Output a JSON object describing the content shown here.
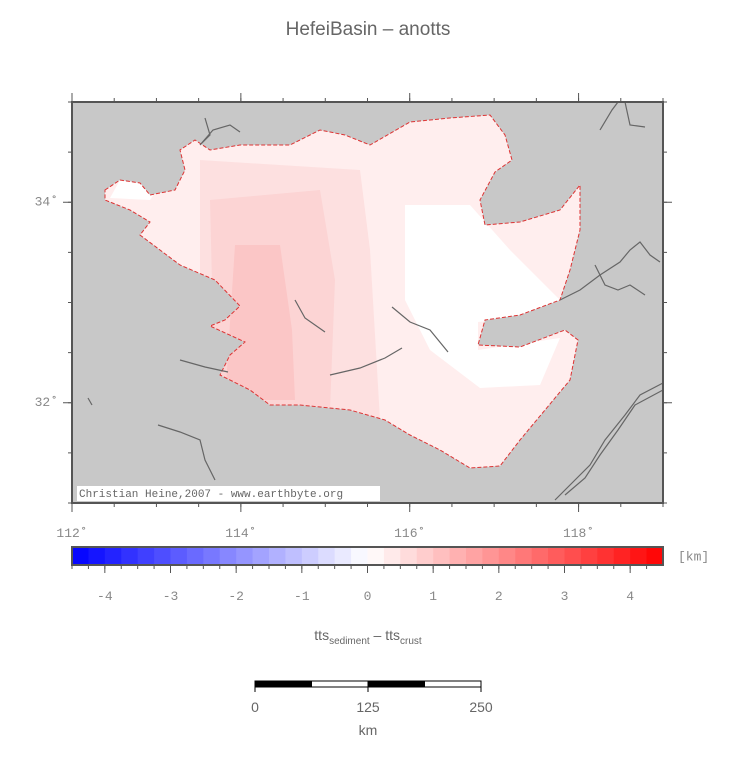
{
  "title": "HefeiBasin – anotts",
  "map": {
    "xlim": [
      112,
      119
    ],
    "ylim": [
      31,
      35
    ],
    "minor_step": 0.5,
    "xticks": [
      {
        "value": 112,
        "label": "112˚"
      },
      {
        "value": 114,
        "label": "114˚"
      },
      {
        "value": 116,
        "label": "116˚"
      },
      {
        "value": 118,
        "label": "118˚"
      }
    ],
    "yticks": [
      {
        "value": 32,
        "label": "32˚"
      },
      {
        "value": 34,
        "label": "34˚"
      }
    ],
    "credit": "Christian Heine,2007 - www.earthbyte.org"
  },
  "colorbar": {
    "lim": [
      -4.5,
      4.5
    ],
    "step": 0.25,
    "colors": [
      "#0000ff",
      "#ffffff",
      "#ff0000"
    ],
    "ticks": [
      -4,
      -3,
      -2,
      -1,
      0,
      1,
      2,
      3,
      4
    ],
    "unit": "[km]",
    "label": {
      "a": "tts",
      "a_sub": "sediment",
      "sep": " – ",
      "b": "tts",
      "b_sub": "crust"
    }
  },
  "scalebar": {
    "ticks": [
      0,
      125,
      250
    ],
    "segments": 4,
    "unit": "km"
  }
}
